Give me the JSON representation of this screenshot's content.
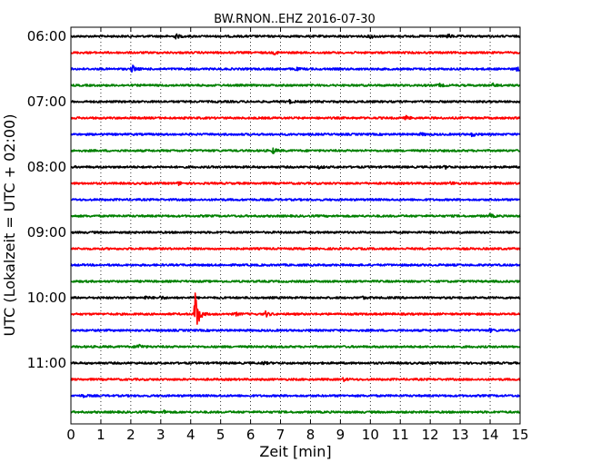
{
  "chart_data": {
    "type": "line",
    "title": "BW.RNON..EHZ 2016-07-30",
    "xlabel": "Zeit  [min]",
    "ylabel": "UTC (Lokalzeit = UTC + 02:00)",
    "xlim": [
      0,
      15
    ],
    "x_ticks": [
      "0",
      "1",
      "2",
      "3",
      "4",
      "5",
      "6",
      "7",
      "8",
      "9",
      "10",
      "11",
      "12",
      "13",
      "14",
      "15"
    ],
    "y_ticks": [
      "06:00",
      "07:00",
      "08:00",
      "09:00",
      "10:00",
      "11:00"
    ],
    "grid": "vertical dotted",
    "trace_colors": [
      "#000000",
      "#ff0000",
      "#0000ff",
      "#008000"
    ],
    "traces": [
      {
        "start": "06:00",
        "events": [
          {
            "t": 3.5,
            "amp": 2.5
          },
          {
            "t": 10.0,
            "amp": 2
          },
          {
            "t": 12.6,
            "amp": 2
          }
        ]
      },
      {
        "start": "06:15",
        "events": [
          {
            "t": 6.8,
            "amp": 1.5
          }
        ]
      },
      {
        "start": "06:30",
        "events": [
          {
            "t": 2.05,
            "amp": 4
          },
          {
            "t": 7.5,
            "amp": 1.5
          },
          {
            "t": 14.9,
            "amp": 2
          }
        ]
      },
      {
        "start": "06:45",
        "events": [
          {
            "t": 12.3,
            "amp": 1.5
          },
          {
            "t": 14.1,
            "amp": 1.5
          }
        ]
      },
      {
        "start": "07:00",
        "events": [
          {
            "t": 7.3,
            "amp": 1.5
          }
        ]
      },
      {
        "start": "07:15",
        "events": [
          {
            "t": 11.2,
            "amp": 2
          }
        ]
      },
      {
        "start": "07:30",
        "events": [
          {
            "t": 11.7,
            "amp": 1.5
          },
          {
            "t": 13.4,
            "amp": 2
          }
        ]
      },
      {
        "start": "07:45",
        "events": [
          {
            "t": 6.75,
            "amp": 3
          }
        ]
      },
      {
        "start": "08:00",
        "events": [
          {
            "t": 8.3,
            "amp": 1.5
          },
          {
            "t": 12.5,
            "amp": 1.5
          }
        ]
      },
      {
        "start": "08:15",
        "events": [
          {
            "t": 3.6,
            "amp": 1.5
          },
          {
            "t": 12.7,
            "amp": 2
          }
        ]
      },
      {
        "start": "08:30",
        "events": []
      },
      {
        "start": "08:45",
        "events": [
          {
            "t": 14.0,
            "amp": 2
          }
        ]
      },
      {
        "start": "09:00",
        "events": []
      },
      {
        "start": "09:15",
        "events": []
      },
      {
        "start": "09:30",
        "events": []
      },
      {
        "start": "09:45",
        "events": []
      },
      {
        "start": "10:00",
        "events": [
          {
            "t": 2.5,
            "amp": 1.5
          },
          {
            "t": 3.0,
            "amp": 1.5
          },
          {
            "t": 9.7,
            "amp": 1.5
          }
        ]
      },
      {
        "start": "10:15",
        "events": [
          {
            "t": 4.15,
            "amp": 30
          },
          {
            "t": 5.5,
            "amp": 1.5
          },
          {
            "t": 6.5,
            "amp": 3
          }
        ]
      },
      {
        "start": "10:30",
        "events": [
          {
            "t": 14.0,
            "amp": 1.5
          }
        ]
      },
      {
        "start": "10:45",
        "events": [
          {
            "t": 2.25,
            "amp": 3.5
          }
        ]
      },
      {
        "start": "11:00",
        "events": [
          {
            "t": 6.4,
            "amp": 1.5
          }
        ]
      },
      {
        "start": "11:15",
        "events": [
          {
            "t": 9.1,
            "amp": 1.5
          }
        ]
      },
      {
        "start": "11:30",
        "events": [
          {
            "t": 0.4,
            "amp": 1.5
          }
        ]
      },
      {
        "start": "11:45",
        "events": [
          {
            "t": 3.1,
            "amp": 1.5
          }
        ]
      }
    ]
  }
}
